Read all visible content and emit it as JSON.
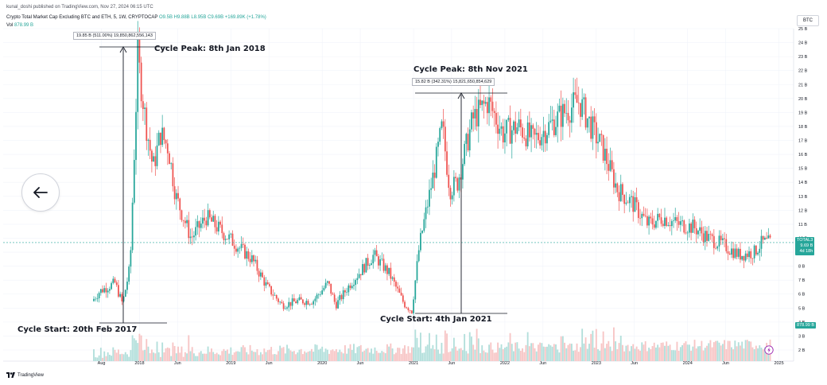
{
  "header": {
    "published": "kunal_doshi published on TradingView.com, Nov 27, 2024 06:15 UTC",
    "symbol": "Crypto Total Market Cap Excluding BTC and ETH, 5, 1W, CRYPTOCAP",
    "ohlc": {
      "o": "O9.5B",
      "h": "H9.88B",
      "l": "L8.95B",
      "c": "C9.69B",
      "chg": "+169.89K (+1.78%)"
    },
    "vol_label": "Vol",
    "vol_value": "878.99 B",
    "currency": "BTC"
  },
  "back_button": {
    "icon": "arrow-left-icon"
  },
  "annotations": {
    "peak_2018": "Cycle Peak: 8th Jan 2018",
    "peak_2021": "Cycle Peak: 8th Nov 2021",
    "start_2017": "Cycle Start: 20th Feb 2017",
    "start_2021": "Cycle Start: 4th Jan 2021",
    "measure_2018": "19.85 B (511.00%) 19,850,862,556,143",
    "measure_2021": "15.82 B (342.31%) 15,821,650,854,629"
  },
  "price_badge": {
    "symbol": "TOTAL3",
    "price": "9.69 B",
    "countdown": "4d 18h"
  },
  "volume_badge": "878.99 B",
  "footer_logo": "TradingView",
  "colors": {
    "up": "#26a69a",
    "down": "#ef5350",
    "up_volume": "#b2dfdb",
    "down_volume": "#f7c5c5",
    "price_line": "#26a69a",
    "measure_line": "#131722"
  },
  "chart_data": {
    "type": "candlestick",
    "symbol": "TOTAL3",
    "timeframe": "1W",
    "x_ticks": [
      "Aug",
      "2018",
      "Jun",
      "2019",
      "Jun",
      "2020",
      "Jun",
      "2021",
      "Jun",
      "2022",
      "Jun",
      "2023",
      "Jun",
      "2024",
      "Jun",
      "2025"
    ],
    "y_ticks": [
      "25 B",
      "24 B",
      "23 B",
      "22 B",
      "21 B",
      "20 B",
      "19 B",
      "18 B",
      "17 B",
      "16 B",
      "15 B",
      "14 B",
      "13 B",
      "12 B",
      "11 B",
      "10 B",
      "9 B",
      "8 B",
      "7 B",
      "6 B",
      "5 B",
      "4 B",
      "3 B",
      "2 B"
    ],
    "ylim": [
      2,
      25
    ],
    "y_unit": "billions (BTC-denominated)",
    "current_price": 9.69,
    "xlabel": "",
    "ylabel": "",
    "trend_keypoints": [
      {
        "date": "Jul 2017",
        "value": 5.5
      },
      {
        "date": "Aug 2017",
        "value": 6.2
      },
      {
        "date": "Oct 2017",
        "value": 6.8
      },
      {
        "date": "Nov 2017",
        "value": 5.3
      },
      {
        "date": "Dec 2017",
        "value": 8.0
      },
      {
        "date": "Jan 2018",
        "value": 23.0
      },
      {
        "date": "Feb 2018",
        "value": 18.5
      },
      {
        "date": "Mar 2018",
        "value": 15.0
      },
      {
        "date": "Apr 2018",
        "value": 17.5
      },
      {
        "date": "May 2018",
        "value": 16.5
      },
      {
        "date": "Jun 2018",
        "value": 13.0
      },
      {
        "date": "Aug 2018",
        "value": 10.0
      },
      {
        "date": "Oct 2018",
        "value": 11.5
      },
      {
        "date": "Dec 2018",
        "value": 10.5
      },
      {
        "date": "Feb 2019",
        "value": 9.5
      },
      {
        "date": "Apr 2019",
        "value": 8.5
      },
      {
        "date": "Jun 2019",
        "value": 6.5
      },
      {
        "date": "Aug 2019",
        "value": 5.2
      },
      {
        "date": "Oct 2019",
        "value": 5.5
      },
      {
        "date": "Dec 2019",
        "value": 5.5
      },
      {
        "date": "Feb 2020",
        "value": 6.8
      },
      {
        "date": "Mar 2020",
        "value": 5.2
      },
      {
        "date": "May 2020",
        "value": 6.8
      },
      {
        "date": "Aug 2020",
        "value": 8.8
      },
      {
        "date": "Oct 2020",
        "value": 7.5
      },
      {
        "date": "Dec 2020",
        "value": 5.3
      },
      {
        "date": "Jan 2021",
        "value": 4.8
      },
      {
        "date": "Feb 2021",
        "value": 9.5
      },
      {
        "date": "Apr 2021",
        "value": 15.0
      },
      {
        "date": "May 2021",
        "value": 18.0
      },
      {
        "date": "Jun 2021",
        "value": 13.5
      },
      {
        "date": "Jul 2021",
        "value": 14.0
      },
      {
        "date": "Sep 2021",
        "value": 18.5
      },
      {
        "date": "Nov 2021",
        "value": 19.8
      },
      {
        "date": "Jan 2022",
        "value": 17.5
      },
      {
        "date": "Mar 2022",
        "value": 18.0
      },
      {
        "date": "May 2022",
        "value": 17.0
      },
      {
        "date": "Jul 2022",
        "value": 18.0
      },
      {
        "date": "Sep 2022",
        "value": 19.0
      },
      {
        "date": "Nov 2022",
        "value": 19.8
      },
      {
        "date": "Jan 2023",
        "value": 17.5
      },
      {
        "date": "Feb 2023",
        "value": 16.5
      },
      {
        "date": "Apr 2023",
        "value": 13.5
      },
      {
        "date": "Jun 2023",
        "value": 12.5
      },
      {
        "date": "Aug 2023",
        "value": 11.0
      },
      {
        "date": "Oct 2023",
        "value": 11.5
      },
      {
        "date": "Dec 2023",
        "value": 11.0
      },
      {
        "date": "Feb 2024",
        "value": 10.8
      },
      {
        "date": "Apr 2024",
        "value": 10.0
      },
      {
        "date": "Jun 2024",
        "value": 9.5
      },
      {
        "date": "Aug 2024",
        "value": 8.8
      },
      {
        "date": "Oct 2024",
        "value": 9.0
      },
      {
        "date": "Nov 2024",
        "value": 9.69
      }
    ],
    "measurements": [
      {
        "label": "19.85 B (511.00%) 19,850,862,556,143",
        "from_date": "20 Feb 2017",
        "to_date": "8 Jan 2018"
      },
      {
        "label": "15.82 B (342.31%) 15,821,650,854,629",
        "from_date": "4 Jan 2021",
        "to_date": "8 Nov 2021"
      }
    ]
  }
}
